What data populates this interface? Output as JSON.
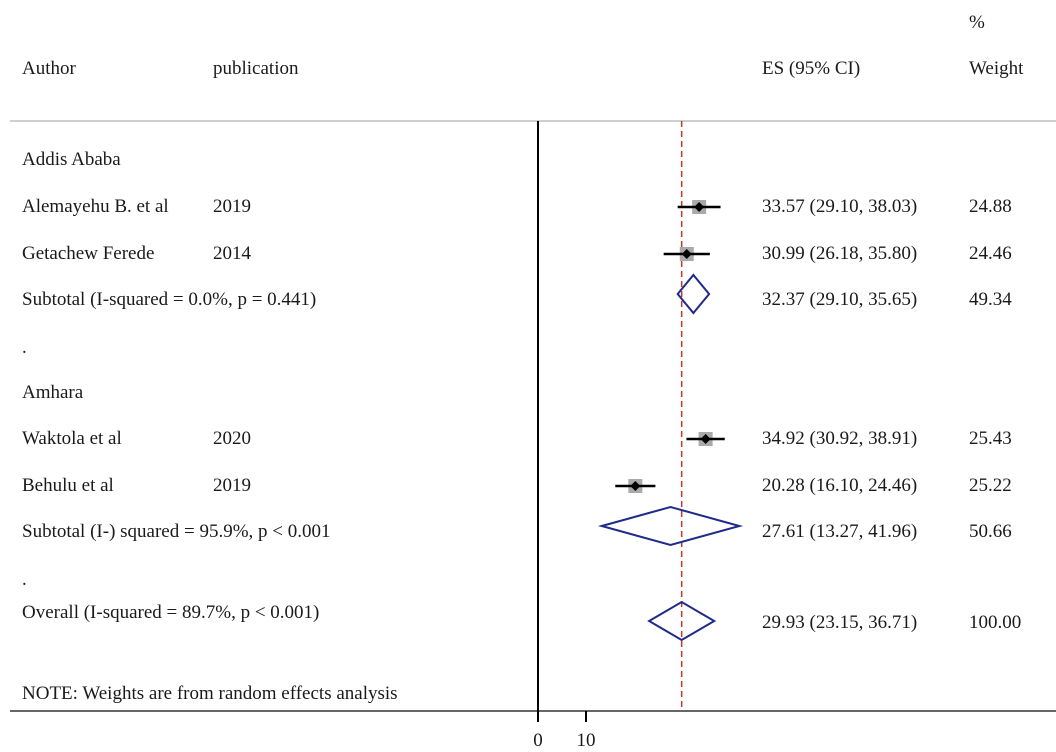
{
  "header": {
    "author": "Author",
    "publication": "publication",
    "es": "ES (95% CI)",
    "weight_pct": "%",
    "weight": "Weight"
  },
  "rows": [
    {
      "kind": "group",
      "label": "Addis Ababa"
    },
    {
      "kind": "study",
      "author": "Alemayehu B. et al",
      "year": "2019",
      "es_text": "33.57 (29.10, 38.03)",
      "weight": "24.88"
    },
    {
      "kind": "study",
      "author": "Getachew Ferede",
      "year": "2014",
      "es_text": "30.99 (26.18, 35.80)",
      "weight": "24.46"
    },
    {
      "kind": "subtotal",
      "label": "Subtotal  (I-squared = 0.0%, p = 0.441)",
      "es_text": "32.37 (29.10, 35.65)",
      "weight": "49.34"
    },
    {
      "kind": "spacer",
      "label": "."
    },
    {
      "kind": "group",
      "label": "Amhara"
    },
    {
      "kind": "study",
      "author": "Waktola et al",
      "year": "2020",
      "es_text": "34.92 (30.92, 38.91)",
      "weight": "25.43"
    },
    {
      "kind": "study",
      "author": "Behulu et al",
      "year": "2019",
      "es_text": "20.28 (16.10, 24.46)",
      "weight": "25.22"
    },
    {
      "kind": "subtotal",
      "label": "Subtotal  (I-) squared = 95.9%, p < 0.001",
      "es_text": "27.61 (13.27, 41.96)",
      "weight": "50.66"
    },
    {
      "kind": "spacer",
      "label": "."
    },
    {
      "kind": "overall",
      "label": "Overall  (I-squared = 89.7%, p < 0.001)",
      "es_text": "29.93 (23.15, 36.71)",
      "weight": "100.00"
    }
  ],
  "note": "NOTE: Weights are from random effects analysis",
  "axis": {
    "tick_labels": [
      "0",
      "10"
    ]
  },
  "colors": {
    "diamond": "#1f2a8a",
    "ref_line": "#c0392b",
    "point": "#000000",
    "box": "#aaaaaa"
  },
  "chart_data": {
    "type": "forest",
    "xlabel": "",
    "xticks": [
      0,
      10
    ],
    "overall_effect_line": 29.93,
    "studies": [
      {
        "author": "Alemayehu B. et al",
        "year": "2019",
        "group": "Addis Ababa",
        "es": 33.57,
        "lo": 29.1,
        "hi": 38.03,
        "weight": 24.88
      },
      {
        "author": "Getachew Ferede",
        "year": "2014",
        "group": "Addis Ababa",
        "es": 30.99,
        "lo": 26.18,
        "hi": 35.8,
        "weight": 24.46
      },
      {
        "author": "Waktola et al",
        "year": "2020",
        "group": "Amhara",
        "es": 34.92,
        "lo": 30.92,
        "hi": 38.91,
        "weight": 25.43
      },
      {
        "author": "Behulu et al",
        "year": "2019",
        "group": "Amhara",
        "es": 20.28,
        "lo": 16.1,
        "hi": 24.46,
        "weight": 25.22
      }
    ],
    "subtotals": [
      {
        "group": "Addis Ababa",
        "es": 32.37,
        "lo": 29.1,
        "hi": 35.65,
        "weight": 49.34,
        "i_squared": "0.0%",
        "p": "0.441"
      },
      {
        "group": "Amhara",
        "es": 27.61,
        "lo": 13.27,
        "hi": 41.96,
        "weight": 50.66,
        "i_squared": "95.9%",
        "p": "< 0.001"
      }
    ],
    "overall": {
      "es": 29.93,
      "lo": 23.15,
      "hi": 36.71,
      "weight": 100.0,
      "i_squared": "89.7%",
      "p": "< 0.001"
    }
  }
}
